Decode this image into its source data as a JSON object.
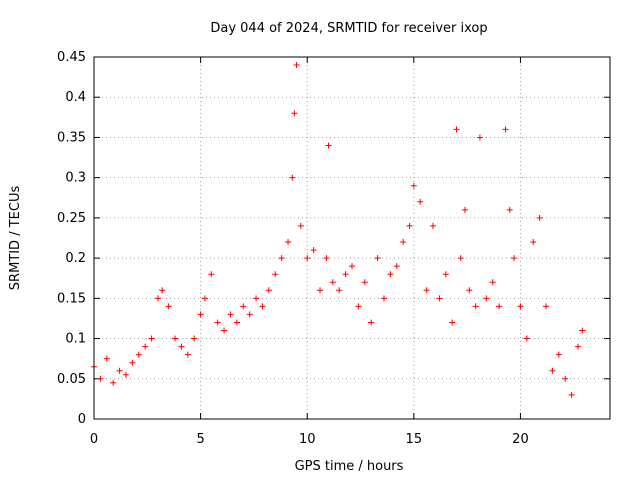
{
  "chart_data": {
    "type": "scatter",
    "title": "Day 044 of 2024, SRMTID for receiver ixop",
    "xlabel": "GPS time / hours",
    "ylabel": "SRMTID / TECUs",
    "xlim": [
      0,
      24.2
    ],
    "ylim": [
      0,
      0.45
    ],
    "x_ticks": [
      {
        "value": 0,
        "label": "0"
      },
      {
        "value": 5,
        "label": "5"
      },
      {
        "value": 10,
        "label": "10"
      },
      {
        "value": 15,
        "label": "15"
      },
      {
        "value": 20,
        "label": "20"
      }
    ],
    "y_ticks": [
      {
        "value": 0,
        "label": "0"
      },
      {
        "value": 0.05,
        "label": "0.05"
      },
      {
        "value": 0.1,
        "label": "0.1"
      },
      {
        "value": 0.15,
        "label": "0.15"
      },
      {
        "value": 0.2,
        "label": "0.2"
      },
      {
        "value": 0.25,
        "label": "0.25"
      },
      {
        "value": 0.3,
        "label": "0.3"
      },
      {
        "value": 0.35,
        "label": "0.35"
      },
      {
        "value": 0.4,
        "label": "0.4"
      },
      {
        "value": 0.45,
        "label": "0.45"
      }
    ],
    "grid": true,
    "marker": "+",
    "color": "#ff0000",
    "series": [
      {
        "name": "SRMTID",
        "x": [
          0.0,
          0.3,
          0.6,
          0.9,
          1.2,
          1.5,
          1.8,
          2.1,
          2.4,
          2.7,
          3.0,
          3.2,
          3.5,
          3.8,
          4.1,
          4.4,
          4.7,
          5.0,
          5.2,
          5.5,
          5.8,
          6.1,
          6.4,
          6.7,
          7.0,
          7.3,
          7.6,
          7.9,
          8.2,
          8.5,
          8.8,
          9.1,
          9.3,
          9.4,
          9.5,
          9.7,
          10.0,
          10.3,
          10.6,
          10.9,
          11.0,
          11.2,
          11.5,
          11.8,
          12.1,
          12.4,
          12.7,
          13.0,
          13.3,
          13.6,
          13.9,
          14.2,
          14.5,
          14.8,
          15.0,
          15.3,
          15.6,
          15.9,
          16.2,
          16.5,
          16.8,
          17.0,
          17.2,
          17.4,
          17.6,
          17.9,
          18.1,
          18.4,
          18.7,
          19.0,
          19.3,
          19.5,
          19.7,
          20.0,
          20.3,
          20.6,
          20.9,
          21.2,
          21.5,
          21.8,
          22.1,
          22.4,
          22.7,
          22.9
        ],
        "y": [
          0.065,
          0.05,
          0.075,
          0.045,
          0.06,
          0.055,
          0.07,
          0.08,
          0.09,
          0.1,
          0.15,
          0.16,
          0.14,
          0.1,
          0.09,
          0.08,
          0.1,
          0.13,
          0.15,
          0.18,
          0.12,
          0.11,
          0.13,
          0.12,
          0.14,
          0.13,
          0.15,
          0.14,
          0.16,
          0.18,
          0.2,
          0.22,
          0.3,
          0.38,
          0.44,
          0.24,
          0.2,
          0.21,
          0.16,
          0.2,
          0.34,
          0.17,
          0.16,
          0.18,
          0.19,
          0.14,
          0.17,
          0.12,
          0.2,
          0.15,
          0.18,
          0.19,
          0.22,
          0.24,
          0.29,
          0.27,
          0.16,
          0.24,
          0.15,
          0.18,
          0.12,
          0.36,
          0.2,
          0.26,
          0.16,
          0.14,
          0.35,
          0.15,
          0.17,
          0.14,
          0.36,
          0.26,
          0.2,
          0.14,
          0.1,
          0.22,
          0.25,
          0.14,
          0.06,
          0.08,
          0.05,
          0.03,
          0.09,
          0.11
        ]
      }
    ]
  }
}
